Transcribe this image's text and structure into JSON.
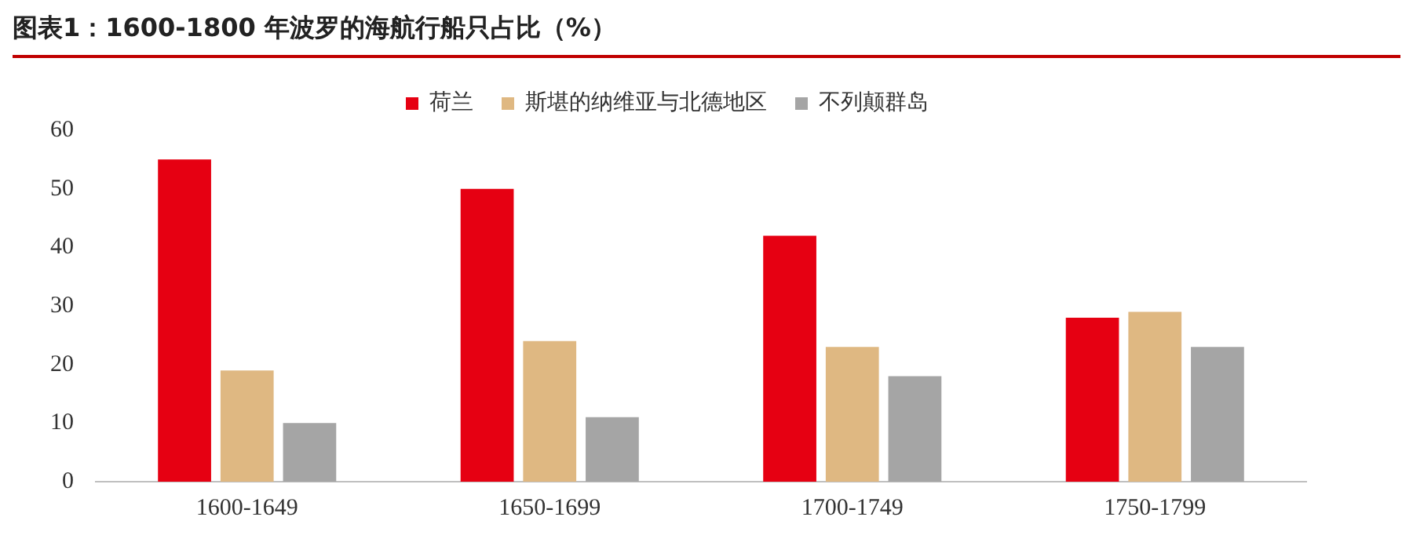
{
  "chart_data": {
    "type": "bar",
    "title": "图表1：1600-1800 年波罗的海航行船只占比（%）",
    "categories": [
      "1600-1649",
      "1650-1699",
      "1700-1749",
      "1750-1799"
    ],
    "series": [
      {
        "name": "荷兰",
        "color": "#e60012",
        "values": [
          55,
          50,
          42,
          28
        ]
      },
      {
        "name": "斯堪的纳维亚与北德地区",
        "color": "#dfb882",
        "values": [
          19,
          24,
          23,
          29
        ]
      },
      {
        "name": "不列颠群岛",
        "color": "#a5a5a5",
        "values": [
          10,
          11,
          18,
          23
        ]
      }
    ],
    "ylim": [
      0,
      60
    ],
    "yticks": [
      0,
      10,
      20,
      30,
      40,
      50,
      60
    ],
    "grid": false,
    "legend": "top"
  }
}
